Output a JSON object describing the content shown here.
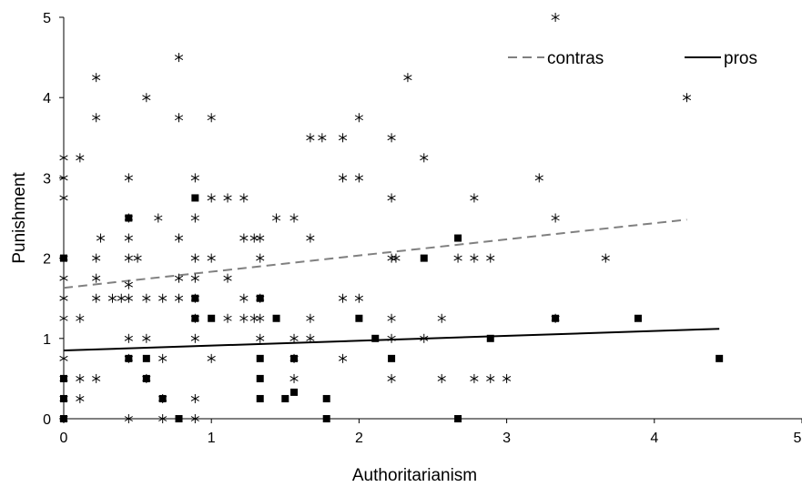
{
  "chart_data": {
    "type": "scatter",
    "xlabel": "Authoritarianism",
    "ylabel": "Punishment",
    "xlim": [
      0,
      5
    ],
    "ylim": [
      0,
      5
    ],
    "x_ticks": [
      "0",
      "1",
      "2",
      "3",
      "4",
      "5"
    ],
    "y_ticks": [
      "0",
      "1",
      "2",
      "3",
      "4",
      "5"
    ],
    "grid": false,
    "legend": {
      "position": "top-right",
      "entries": [
        {
          "label": "contras",
          "style": "dashed",
          "color": "#808080"
        },
        {
          "label": "pros",
          "style": "solid",
          "color": "#000000"
        }
      ]
    },
    "series": [
      {
        "marker": "asterisk",
        "color": "#000000",
        "points": [
          [
            0,
            0
          ],
          [
            0,
            0.25
          ],
          [
            0,
            0.5
          ],
          [
            0,
            0.75
          ],
          [
            0,
            1.25
          ],
          [
            0,
            1.5
          ],
          [
            0,
            1.75
          ],
          [
            0,
            2
          ],
          [
            0,
            2.75
          ],
          [
            0,
            3
          ],
          [
            0,
            3.25
          ],
          [
            0.11,
            0.25
          ],
          [
            0.11,
            0.5
          ],
          [
            0.11,
            1.25
          ],
          [
            0.11,
            3.25
          ],
          [
            0.22,
            0.5
          ],
          [
            0.22,
            1.5
          ],
          [
            0.22,
            1.75
          ],
          [
            0.22,
            2
          ],
          [
            0.22,
            3.75
          ],
          [
            0.22,
            4.25
          ],
          [
            0.25,
            2.25
          ],
          [
            0.33,
            1.5
          ],
          [
            0.39,
            1.5
          ],
          [
            0.44,
            0
          ],
          [
            0.44,
            0.75
          ],
          [
            0.44,
            1
          ],
          [
            0.44,
            1.5
          ],
          [
            0.44,
            1.67
          ],
          [
            0.44,
            2
          ],
          [
            0.44,
            2.25
          ],
          [
            0.44,
            2.5
          ],
          [
            0.44,
            3
          ],
          [
            0.5,
            2
          ],
          [
            0.56,
            0.5
          ],
          [
            0.56,
            1
          ],
          [
            0.56,
            1.5
          ],
          [
            0.56,
            4
          ],
          [
            0.64,
            2.5
          ],
          [
            0.67,
            0
          ],
          [
            0.67,
            0.25
          ],
          [
            0.67,
            0.75
          ],
          [
            0.67,
            1.5
          ],
          [
            0.78,
            1.5
          ],
          [
            0.78,
            1.75
          ],
          [
            0.78,
            2.25
          ],
          [
            0.78,
            3.75
          ],
          [
            0.78,
            4.5
          ],
          [
            0.89,
            0
          ],
          [
            0.89,
            0.25
          ],
          [
            0.89,
            1
          ],
          [
            0.89,
            1.25
          ],
          [
            0.89,
            1.5
          ],
          [
            0.89,
            1.75
          ],
          [
            0.89,
            2
          ],
          [
            0.89,
            2.5
          ],
          [
            0.89,
            3
          ],
          [
            1,
            0.75
          ],
          [
            1,
            2
          ],
          [
            1,
            2.75
          ],
          [
            1,
            3.75
          ],
          [
            1.11,
            1.25
          ],
          [
            1.11,
            1.75
          ],
          [
            1.11,
            2.75
          ],
          [
            1.22,
            1.25
          ],
          [
            1.22,
            1.5
          ],
          [
            1.22,
            2.25
          ],
          [
            1.22,
            2.75
          ],
          [
            1.29,
            1.25
          ],
          [
            1.29,
            2.25
          ],
          [
            1.33,
            1
          ],
          [
            1.33,
            1.25
          ],
          [
            1.33,
            1.5
          ],
          [
            1.33,
            2
          ],
          [
            1.33,
            2.25
          ],
          [
            1.44,
            2.5
          ],
          [
            1.56,
            0.5
          ],
          [
            1.56,
            0.75
          ],
          [
            1.56,
            1
          ],
          [
            1.56,
            2.5
          ],
          [
            1.67,
            1
          ],
          [
            1.67,
            1.25
          ],
          [
            1.67,
            2.25
          ],
          [
            1.67,
            3.5
          ],
          [
            1.75,
            3.5
          ],
          [
            1.89,
            0.75
          ],
          [
            1.89,
            1.5
          ],
          [
            1.89,
            3
          ],
          [
            1.89,
            3.5
          ],
          [
            2,
            1.5
          ],
          [
            2,
            3
          ],
          [
            2,
            3.75
          ],
          [
            2.22,
            0.5
          ],
          [
            2.22,
            1
          ],
          [
            2.22,
            1.25
          ],
          [
            2.22,
            2
          ],
          [
            2.22,
            2.75
          ],
          [
            2.22,
            3.5
          ],
          [
            2.25,
            2
          ],
          [
            2.33,
            4.25
          ],
          [
            2.44,
            1
          ],
          [
            2.44,
            3.25
          ],
          [
            2.56,
            0.5
          ],
          [
            2.56,
            1.25
          ],
          [
            2.67,
            2
          ],
          [
            2.78,
            0.5
          ],
          [
            2.78,
            2
          ],
          [
            2.78,
            2.75
          ],
          [
            2.89,
            0.5
          ],
          [
            2.89,
            2
          ],
          [
            3,
            0.5
          ],
          [
            3.22,
            3
          ],
          [
            3.33,
            1.25
          ],
          [
            3.33,
            2.5
          ],
          [
            3.33,
            5
          ],
          [
            3.67,
            2
          ],
          [
            4.22,
            4
          ]
        ]
      },
      {
        "marker": "square",
        "color": "#000000",
        "points": [
          [
            0,
            0
          ],
          [
            0,
            0.25
          ],
          [
            0,
            0.5
          ],
          [
            0,
            2
          ],
          [
            0.44,
            0.75
          ],
          [
            0.44,
            2.5
          ],
          [
            0.56,
            0.5
          ],
          [
            0.56,
            0.75
          ],
          [
            0.67,
            0.25
          ],
          [
            0.78,
            0
          ],
          [
            0.89,
            1.25
          ],
          [
            0.89,
            1.5
          ],
          [
            0.89,
            2.75
          ],
          [
            1,
            1.25
          ],
          [
            1.33,
            0.25
          ],
          [
            1.33,
            0.5
          ],
          [
            1.33,
            0.75
          ],
          [
            1.33,
            1.5
          ],
          [
            1.44,
            1.25
          ],
          [
            1.5,
            0.25
          ],
          [
            1.56,
            0.33
          ],
          [
            1.56,
            0.75
          ],
          [
            1.78,
            0
          ],
          [
            1.78,
            0.25
          ],
          [
            2,
            1.25
          ],
          [
            2.11,
            1
          ],
          [
            2.22,
            0.75
          ],
          [
            2.44,
            2
          ],
          [
            2.67,
            0
          ],
          [
            2.67,
            2.25
          ],
          [
            2.89,
            1
          ],
          [
            3.33,
            1.25
          ],
          [
            3.89,
            1.25
          ],
          [
            4.44,
            0.75
          ]
        ]
      }
    ],
    "trendlines": [
      {
        "name": "contras",
        "style": "dashed",
        "color": "#808080",
        "x": [
          0,
          4.22
        ],
        "y": [
          1.63,
          2.48
        ]
      },
      {
        "name": "pros",
        "style": "solid",
        "color": "#000000",
        "x": [
          0,
          4.44
        ],
        "y": [
          0.85,
          1.12
        ]
      }
    ]
  }
}
